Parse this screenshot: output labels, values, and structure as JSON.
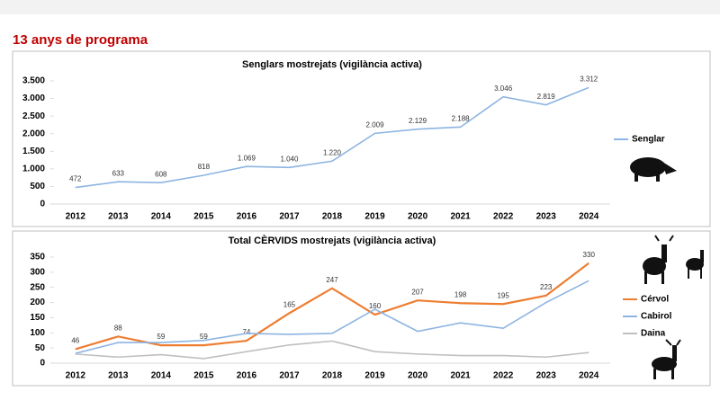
{
  "heading": "13 anys de programa",
  "chart_data": [
    {
      "type": "line",
      "title": "Senglars mostrejats (vigilància activa)",
      "categories": [
        "2012",
        "2013",
        "2014",
        "2015",
        "2016",
        "2017",
        "2018",
        "2019",
        "2020",
        "2021",
        "2022",
        "2023",
        "2024"
      ],
      "series": [
        {
          "name": "Senglar",
          "color": "#8db4e2",
          "values": [
            472,
            633,
            608,
            818,
            1069,
            1040,
            1220,
            2009,
            2129,
            2188,
            3046,
            2819,
            3312
          ],
          "value_labels": [
            "472",
            "633",
            "608",
            "818",
            "1.069",
            "1.040",
            "1.220",
            "2.009",
            "2.129",
            "2.188",
            "3.046",
            "2.819",
            "3.312"
          ]
        }
      ],
      "ylim": [
        0,
        3500
      ],
      "yticks": [
        0,
        500,
        {
          "value": 1000,
          "label": "1.000"
        },
        {
          "value": 1500,
          "label": "1.500"
        },
        {
          "value": 2000,
          "label": "2.000"
        },
        {
          "value": 2500,
          "label": "2.500"
        },
        {
          "value": 3000,
          "label": "3.000"
        },
        {
          "value": 3500,
          "label": "3.500"
        }
      ],
      "grid": false,
      "legend": "right"
    },
    {
      "type": "line",
      "title": "Total CÈRVIDS mostrejats (vigilància activa)",
      "categories": [
        "2012",
        "2013",
        "2014",
        "2015",
        "2016",
        "2017",
        "2018",
        "2019",
        "2020",
        "2021",
        "2022",
        "2023",
        "2024"
      ],
      "series": [
        {
          "name": "Cérvol",
          "color": "#ed7d31",
          "values": [
            46,
            88,
            59,
            59,
            74,
            165,
            247,
            160,
            207,
            198,
            195,
            223,
            330
          ],
          "labels": true
        },
        {
          "name": "Cabirol",
          "color": "#8db4e2",
          "values": [
            32,
            68,
            68,
            75,
            98,
            95,
            98,
            178,
            105,
            133,
            115,
            200,
            272
          ]
        },
        {
          "name": "Daina",
          "color": "#bfbfbf",
          "values": [
            30,
            20,
            28,
            15,
            38,
            60,
            73,
            38,
            30,
            25,
            25,
            20,
            35
          ]
        }
      ],
      "ylim": [
        0,
        350
      ],
      "yticks": [
        0,
        50,
        100,
        150,
        200,
        250,
        300,
        350
      ],
      "grid": false,
      "legend": "right"
    }
  ]
}
